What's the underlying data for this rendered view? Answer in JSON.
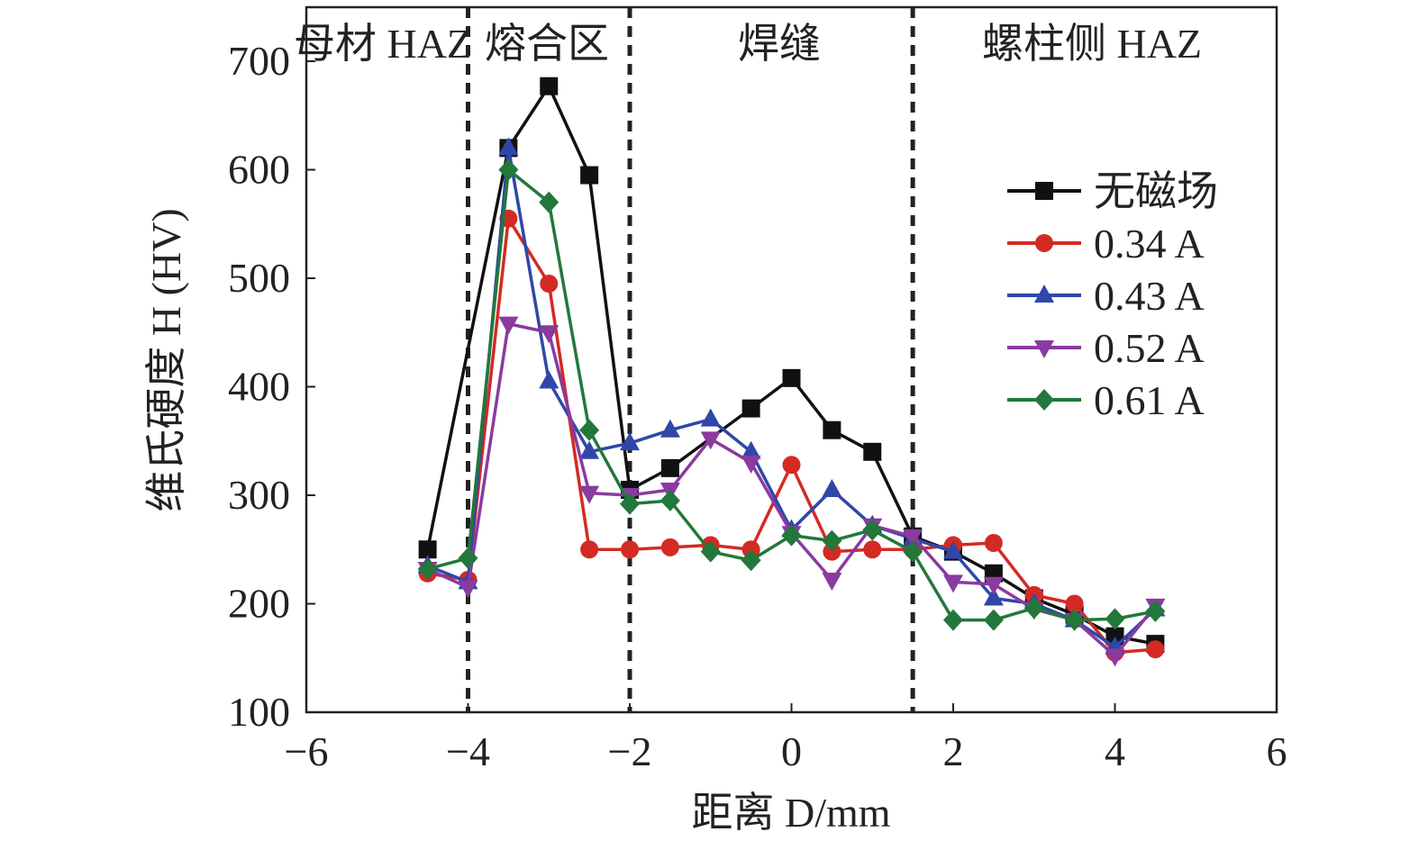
{
  "chart_data": {
    "type": "line",
    "title": "",
    "xlabel": "距离 D/mm",
    "ylabel": "维氏硬度 H (HV)",
    "xlim": [
      -6,
      6
    ],
    "ylim": [
      100,
      700
    ],
    "xticks": [
      -6,
      -4,
      -2,
      0,
      2,
      4,
      6
    ],
    "yticks": [
      100,
      200,
      300,
      400,
      500,
      600,
      700
    ],
    "xtick_labels": [
      "−6",
      "−4",
      "−2",
      "0",
      "2",
      "4",
      "6"
    ],
    "ytick_labels": [
      "100",
      "200",
      "300",
      "400",
      "500",
      "600",
      "700"
    ],
    "grid": false,
    "legend_position": "right",
    "region_boundaries": [
      -4,
      -2,
      1.5
    ],
    "regions": [
      "母材 HAZ",
      "熔合区",
      "焊缝",
      "螺柱侧 HAZ"
    ],
    "x": [
      -4.5,
      -4,
      -3.5,
      -3,
      -2.5,
      -2,
      -1.5,
      -1,
      -0.5,
      0,
      0.5,
      1,
      1.5,
      2,
      2.5,
      3,
      3.5,
      4,
      4.5
    ],
    "series": [
      {
        "name": "无磁场",
        "color": "#111111",
        "marker": "square",
        "points": [
          [
            -4.5,
            250
          ],
          [
            -3.5,
            620
          ],
          [
            -3,
            677
          ],
          [
            -2.5,
            595
          ],
          [
            -2,
            305
          ],
          [
            -1.5,
            325
          ],
          [
            -0.5,
            380
          ],
          [
            0,
            408
          ],
          [
            0.5,
            360
          ],
          [
            1,
            340
          ],
          [
            1.5,
            262
          ],
          [
            2,
            248
          ],
          [
            2.5,
            228
          ],
          [
            3,
            205
          ],
          [
            3.5,
            190
          ],
          [
            4,
            170
          ],
          [
            4.5,
            163
          ]
        ]
      },
      {
        "name": "0.34 A",
        "color": "#d42a24",
        "marker": "circle",
        "points": [
          [
            -4.5,
            228
          ],
          [
            -4,
            222
          ],
          [
            -3.5,
            555
          ],
          [
            -3,
            495
          ],
          [
            -2.5,
            250
          ],
          [
            -2,
            250
          ],
          [
            -1.5,
            252
          ],
          [
            -1,
            254
          ],
          [
            -0.5,
            250
          ],
          [
            0,
            328
          ],
          [
            0.5,
            248
          ],
          [
            1,
            250
          ],
          [
            1.5,
            250
          ],
          [
            2,
            254
          ],
          [
            2.5,
            256
          ],
          [
            3,
            208
          ],
          [
            3.5,
            200
          ],
          [
            4,
            155
          ],
          [
            4.5,
            158
          ]
        ]
      },
      {
        "name": "0.43 A",
        "color": "#2f47a8",
        "marker": "triangle-up",
        "points": [
          [
            -4.5,
            235
          ],
          [
            -4,
            220
          ],
          [
            -3.5,
            620
          ],
          [
            -3,
            405
          ],
          [
            -2.5,
            340
          ],
          [
            -2,
            348
          ],
          [
            -1.5,
            360
          ],
          [
            -1,
            370
          ],
          [
            -0.5,
            340
          ],
          [
            0,
            268
          ],
          [
            0.5,
            305
          ],
          [
            1,
            272
          ],
          [
            1.5,
            260
          ],
          [
            2,
            248
          ],
          [
            2.5,
            205
          ],
          [
            3,
            200
          ],
          [
            3.5,
            185
          ],
          [
            4,
            160
          ],
          [
            4.5,
            195
          ]
        ]
      },
      {
        "name": "0.52 A",
        "color": "#8a3aa0",
        "marker": "triangle-down",
        "points": [
          [
            -4.5,
            232
          ],
          [
            -4,
            215
          ],
          [
            -3.5,
            458
          ],
          [
            -3,
            450
          ],
          [
            -2.5,
            302
          ],
          [
            -2,
            300
          ],
          [
            -1.5,
            305
          ],
          [
            -1,
            352
          ],
          [
            -0.5,
            330
          ],
          [
            0,
            265
          ],
          [
            0.5,
            222
          ],
          [
            1,
            272
          ],
          [
            1.5,
            262
          ],
          [
            2,
            220
          ],
          [
            2.5,
            218
          ],
          [
            3,
            195
          ],
          [
            3.5,
            185
          ],
          [
            4,
            152
          ],
          [
            4.5,
            198
          ]
        ]
      },
      {
        "name": "0.61 A",
        "color": "#22783a",
        "marker": "diamond",
        "points": [
          [
            -4.5,
            232
          ],
          [
            -4,
            242
          ],
          [
            -3.5,
            600
          ],
          [
            -3,
            570
          ],
          [
            -2.5,
            360
          ],
          [
            -2,
            292
          ],
          [
            -1.5,
            295
          ],
          [
            -1,
            248
          ],
          [
            -0.5,
            240
          ],
          [
            0,
            263
          ],
          [
            0.5,
            258
          ],
          [
            1,
            268
          ],
          [
            1.5,
            248
          ],
          [
            2,
            185
          ],
          [
            2.5,
            185
          ],
          [
            3,
            196
          ],
          [
            3.5,
            185
          ],
          [
            4,
            186
          ],
          [
            4.5,
            193
          ]
        ]
      }
    ]
  }
}
